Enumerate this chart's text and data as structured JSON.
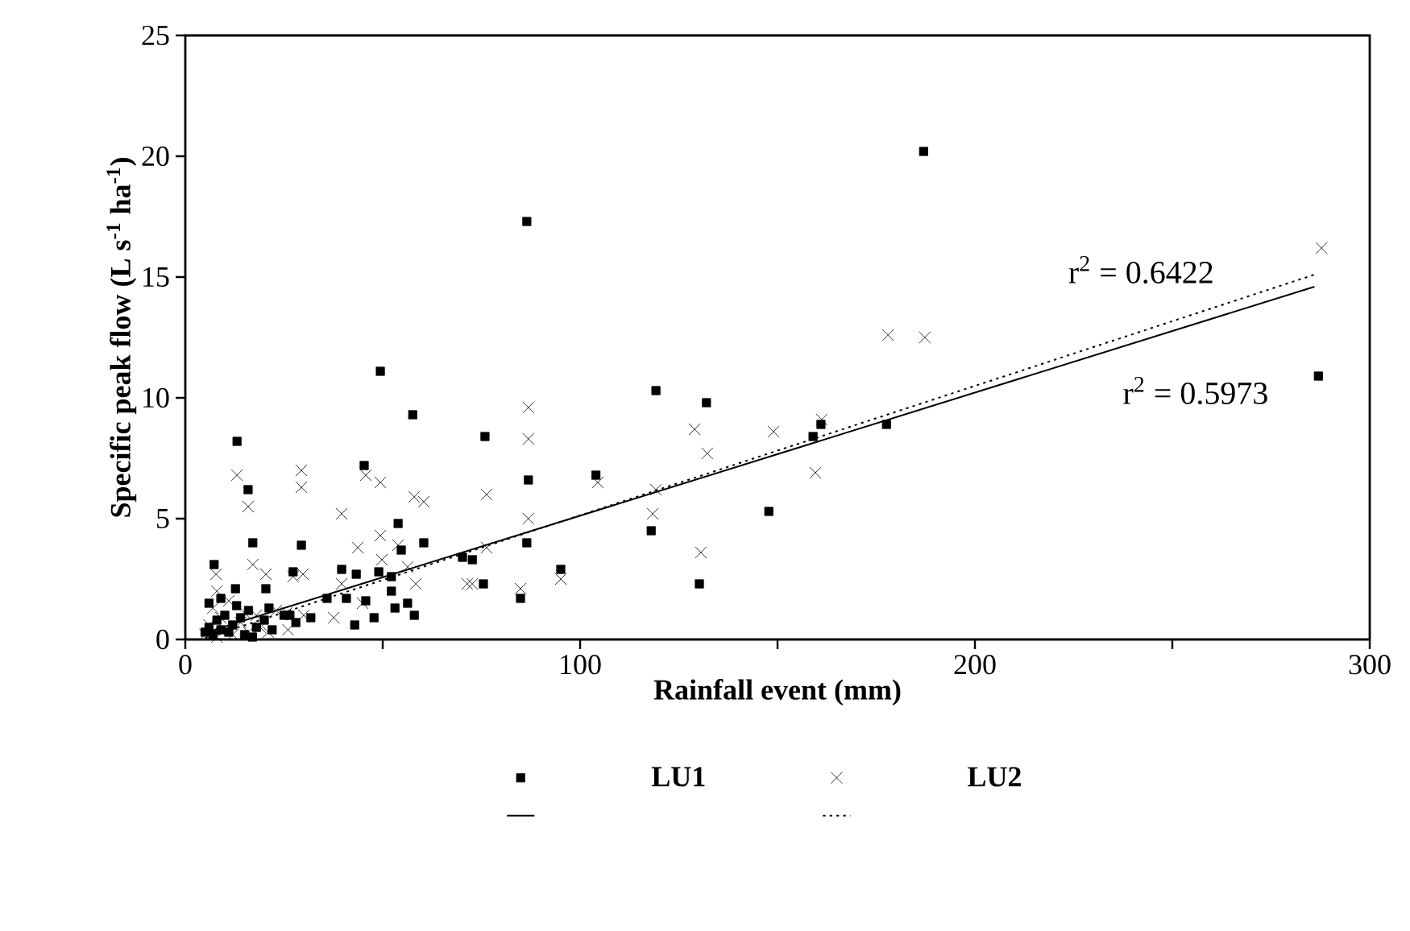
{
  "chart_data": {
    "type": "scatter",
    "xlabel": "Rainfall event (mm)",
    "ylabel": "Specific peak flow (L s$^{-1}$ ha$^{-1}$)",
    "xlim": [
      0,
      300
    ],
    "ylim": [
      0,
      25
    ],
    "xticks": [
      0,
      {
        "value": 50,
        "label": null
      },
      100,
      {
        "value": 150,
        "label": null
      },
      200,
      {
        "value": 250,
        "label": null
      },
      300
    ],
    "yticks": [
      0,
      5,
      10,
      15,
      20,
      25
    ],
    "grid": false,
    "legend": "bottom",
    "series": [
      {
        "name": "LU1",
        "marker": "square",
        "color": "#000000",
        "x": [
          187,
          86.5,
          49.4,
          119.2,
          132,
          287,
          159,
          161,
          177.6,
          75.9,
          86.9,
          104,
          118,
          147.8,
          130.2,
          86.5,
          72.7,
          75.5,
          84.9,
          95.1,
          57.6,
          13.1,
          15.9,
          45.3,
          53.9,
          17.1,
          29.4,
          60.4,
          7.3,
          39.6,
          43.3,
          27.3,
          54.7,
          49,
          12.7,
          20.4,
          52.2,
          52.2,
          70.2,
          35.9,
          40.8,
          45.7,
          31.8,
          26.5,
          47.8,
          53.1,
          56.3,
          58,
          42.9,
          21.2,
          5,
          6,
          7,
          8,
          9,
          10,
          11,
          12,
          14,
          15,
          16,
          18,
          20,
          22,
          25,
          28,
          6,
          9,
          13,
          17
        ],
        "values": [
          20.2,
          17.3,
          11.1,
          10.3,
          9.8,
          10.9,
          8.4,
          8.9,
          8.9,
          8.4,
          6.6,
          6.8,
          4.5,
          5.3,
          2.3,
          4,
          3.3,
          2.3,
          1.7,
          2.9,
          9.3,
          8.2,
          6.2,
          7.2,
          4.8,
          4,
          3.9,
          4,
          3.1,
          2.9,
          2.7,
          2.8,
          3.7,
          2.8,
          2.1,
          2.1,
          2.6,
          2,
          3.4,
          1.7,
          1.7,
          1.6,
          0.9,
          1,
          0.9,
          1.3,
          1.5,
          1,
          0.6,
          1.3,
          0.3,
          0.5,
          0.2,
          0.8,
          0.4,
          1,
          0.3,
          0.6,
          0.9,
          0.2,
          1.2,
          0.5,
          0.8,
          0.4,
          1,
          0.7,
          1.5,
          1.7,
          1.4,
          0.1
        ]
      },
      {
        "name": "LU2",
        "marker": "cross",
        "color": "#000000",
        "x": [
          287.8,
          178,
          187.3,
          161.2,
          159.6,
          149,
          86.9,
          86.9,
          76.3,
          86.9,
          76.3,
          72.7,
          84.9,
          95.1,
          104.5,
          119.2,
          118.4,
          129,
          132.2,
          130.6,
          13.1,
          15.9,
          29.4,
          29.4,
          45.7,
          49.4,
          39.6,
          58,
          60.4,
          49.4,
          43.7,
          17.1,
          20.4,
          7.8,
          27.3,
          29.8,
          49.8,
          53.9,
          56.3,
          58.4,
          39.6,
          71.4,
          25.7,
          37.6,
          44.9,
          5,
          6,
          7,
          8,
          9,
          10,
          11,
          12,
          14,
          15,
          16,
          18,
          19,
          21,
          23,
          26,
          8,
          30
        ],
        "values": [
          16.2,
          12.6,
          12.5,
          9.1,
          6.9,
          8.6,
          9.6,
          8.3,
          6,
          5,
          3.8,
          2.3,
          2.1,
          2.5,
          6.5,
          6.2,
          5.2,
          8.7,
          7.7,
          3.6,
          6.8,
          5.5,
          7,
          6.3,
          6.8,
          6.5,
          5.2,
          5.9,
          5.7,
          4.3,
          3.8,
          3.1,
          2.7,
          2.7,
          2.6,
          2.7,
          3.3,
          3.9,
          3,
          2.3,
          2.3,
          2.3,
          1.1,
          0.9,
          1.5,
          0.2,
          0.6,
          1.3,
          0.1,
          0.9,
          0.4,
          1.6,
          0.2,
          0.7,
          1.1,
          0.3,
          1,
          0.5,
          0.3,
          1.2,
          0.4,
          2,
          1
        ]
      },
      {
        "type": "line",
        "line_style": "solid",
        "marker": "none",
        "color": "#000000",
        "x": [
          5,
          286
        ],
        "values": [
          0.28,
          14.6
        ]
      },
      {
        "type": "line",
        "line_style": "dotted",
        "marker": "none",
        "color": "#000000",
        "x": [
          5,
          286
        ],
        "values": [
          0.05,
          15.1
        ]
      }
    ],
    "annotations": [
      "r$^{2}$ = 0.6422",
      "r$^{2}$ = 0.5973"
    ]
  }
}
